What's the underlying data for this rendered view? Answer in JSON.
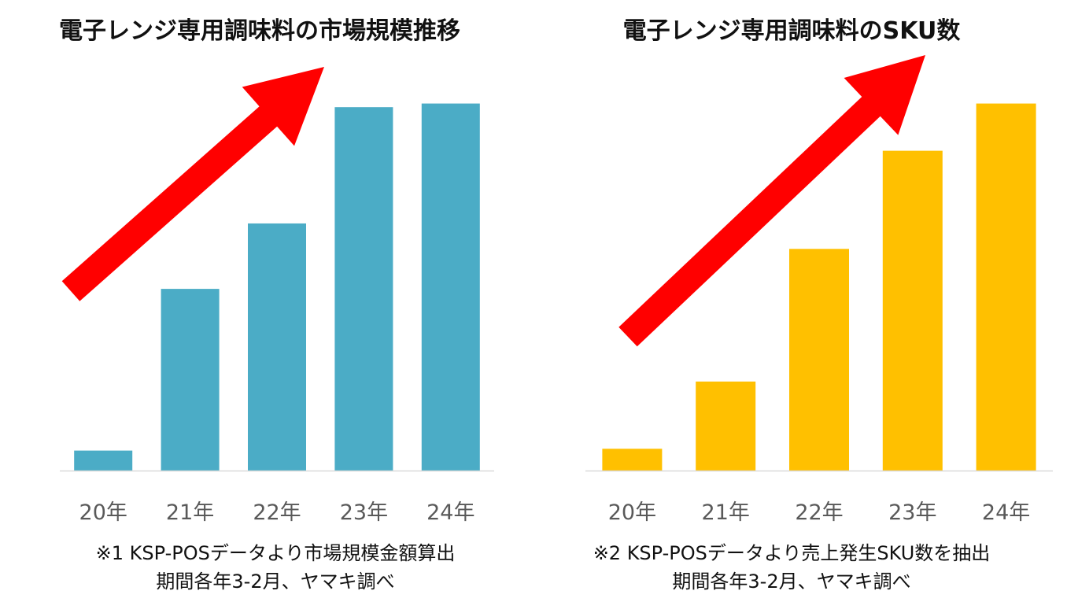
{
  "chart_data": [
    {
      "type": "bar",
      "title": "電子レンジ専用調味料の市場規模推移",
      "categories": [
        "20年",
        "21年",
        "22年",
        "23年",
        "24年"
      ],
      "values": [
        5.5,
        50,
        68,
        100,
        101
      ],
      "ylim": [
        0,
        110
      ],
      "color": "#4BACC6",
      "trend_arrow_color": "#FF0000",
      "note_lines": [
        "※1 KSP-POSデータより市場規模金額算出",
        "期間各年3-2月、ヤマキ調べ"
      ]
    },
    {
      "type": "bar",
      "title": "電子レンジ専用調味料のSKU数",
      "categories": [
        "20年",
        "21年",
        "22年",
        "23年",
        "24年"
      ],
      "values": [
        6,
        24.5,
        61,
        88,
        101
      ],
      "ylim": [
        0,
        110
      ],
      "color": "#FFC000",
      "trend_arrow_color": "#FF0000",
      "note_lines": [
        "※2 KSP-POSデータより売上発生SKU数を抽出",
        "期間各年3-2月、ヤマキ調べ"
      ]
    }
  ]
}
